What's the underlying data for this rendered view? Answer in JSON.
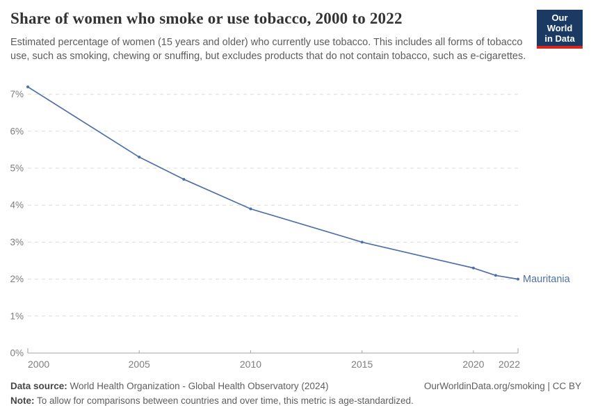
{
  "header": {
    "title": "Share of women who smoke or use tobacco, 2000 to 2022",
    "subtitle": "Estimated percentage of women (15 years and older) who currently use tobacco. This includes all forms of tobacco use, such as smoking, chewing or snuffing, but excludes products that do not contain tobacco, such as e-cigarettes.",
    "logo": {
      "line1": "Our World",
      "line2": "in Data",
      "bg_color": "#1a3a63",
      "stripe_color": "#d7271d"
    }
  },
  "chart_data": {
    "type": "line",
    "title": "Share of women who smoke or use tobacco, 2000 to 2022",
    "xlabel": "",
    "ylabel": "",
    "xlim": [
      2000,
      2022
    ],
    "ylim": [
      0,
      7
    ],
    "grid": true,
    "grid_style": "dashed-horizontal",
    "legend_position": "end-of-line-label",
    "x_ticks": [
      2000,
      2005,
      2010,
      2015,
      2020,
      2022
    ],
    "y_ticks": [
      0,
      1,
      2,
      3,
      4,
      5,
      6,
      7
    ],
    "y_tick_suffix": "%",
    "series": [
      {
        "name": "Mauritania",
        "color": "#4e70a8",
        "points": [
          {
            "year": 2000,
            "value": 7.2
          },
          {
            "year": 2005,
            "value": 5.3
          },
          {
            "year": 2007,
            "value": 4.7
          },
          {
            "year": 2010,
            "value": 3.9
          },
          {
            "year": 2015,
            "value": 3.0
          },
          {
            "year": 2020,
            "value": 2.3
          },
          {
            "year": 2021,
            "value": 2.1
          },
          {
            "year": 2022,
            "value": 2.0
          }
        ]
      }
    ],
    "colors": {
      "grid": "#dcdcdc",
      "axis": "#a3a3a3",
      "tick_label": "#7d7d7d"
    }
  },
  "footer": {
    "source_label": "Data source:",
    "source_text": " World Health Organization - Global Health Observatory (2024)",
    "link_text": "OurWorldinData.org/smoking | CC BY",
    "note_label": "Note:",
    "note_text": " To allow for comparisons between countries and over time, this metric is age-standardized."
  }
}
